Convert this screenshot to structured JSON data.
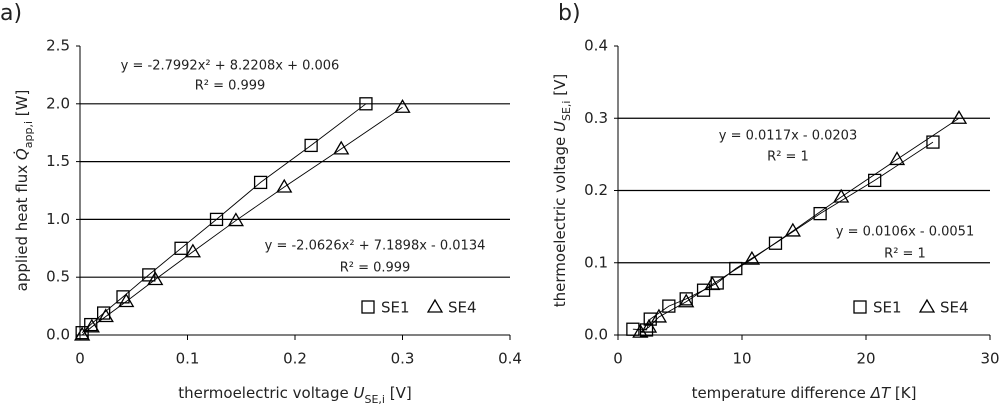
{
  "chart_data": [
    {
      "type": "scatter",
      "panel": "a)",
      "xlabel": {
        "text": "thermoelectric voltage ",
        "symbol": "U",
        "sub": "SE,i",
        "unit": " [V]"
      },
      "ylabel": {
        "text": "applied heat flux ",
        "symbol": "Q̇",
        "sub": "app,i",
        "unit": " [W]"
      },
      "xlim": [
        0,
        0.4
      ],
      "xticks": [
        0,
        0.1,
        0.2,
        0.3,
        0.4
      ],
      "ylim": [
        0,
        2.5
      ],
      "yticks": [
        {
          "value": 0,
          "label": "0.0"
        },
        {
          "value": 0.5,
          "label": "0.5"
        },
        {
          "value": 1,
          "label": "1.0"
        },
        {
          "value": 1.5,
          "label": "1.5"
        },
        {
          "value": 2,
          "label": "2.0"
        },
        {
          "value": 2.5,
          "label": "2.5"
        }
      ],
      "grid": true,
      "series": [
        {
          "name": "SE1",
          "marker": "square",
          "color": "#000000",
          "x": [
            0.002,
            0.01,
            0.022,
            0.04,
            0.064,
            0.094,
            0.127,
            0.168,
            0.215,
            0.266
          ],
          "values": [
            0.02,
            0.09,
            0.19,
            0.33,
            0.52,
            0.75,
            1.0,
            1.32,
            1.64,
            2.0
          ]
        },
        {
          "name": "SE4",
          "marker": "triangle",
          "color": "#000000",
          "x": [
            0.002,
            0.011,
            0.024,
            0.043,
            0.07,
            0.105,
            0.145,
            0.19,
            0.243,
            0.3
          ],
          "values": [
            0.0,
            0.07,
            0.16,
            0.29,
            0.48,
            0.72,
            0.99,
            1.28,
            1.61,
            1.97
          ]
        }
      ],
      "annotations": [
        "y = -2.7992x² + 8.2208x + 0.006",
        "R² = 0.999",
        "y = -2.0626x² + 7.1898x - 0.0134",
        "R² = 0.999"
      ]
    },
    {
      "type": "scatter",
      "panel": "b)",
      "xlabel": {
        "text": "temperature difference ",
        "symbol": "ΔT",
        "sub": "",
        "unit": " [K]"
      },
      "ylabel": {
        "text": "thermoelectric voltage ",
        "symbol": "U",
        "sub": "SE,i",
        "unit": " [V]"
      },
      "xlim": [
        0,
        30
      ],
      "xticks": [
        0,
        10,
        20,
        30
      ],
      "ylim": [
        0,
        0.4
      ],
      "yticks": [
        {
          "value": 0,
          "label": "0.0"
        },
        {
          "value": 0.1,
          "label": "0.1"
        },
        {
          "value": 0.2,
          "label": "0.2"
        },
        {
          "value": 0.3,
          "label": "0.3"
        },
        {
          "value": 0.4,
          "label": "0.4"
        }
      ],
      "grid": true,
      "series": [
        {
          "name": "SE1",
          "marker": "square",
          "color": "#000000",
          "x": [
            1.2,
            2.3,
            2.6,
            4.1,
            5.5,
            6.9,
            8.0,
            9.5,
            12.7,
            16.3,
            20.7,
            25.4
          ],
          "values": [
            0.008,
            0.007,
            0.022,
            0.04,
            0.05,
            0.062,
            0.072,
            0.092,
            0.127,
            0.168,
            0.214,
            0.267
          ]
        },
        {
          "name": "SE4",
          "marker": "triangle",
          "color": "#000000",
          "x": [
            1.8,
            2.5,
            3.3,
            5.5,
            7.6,
            10.8,
            14.1,
            18.0,
            22.5,
            27.5
          ],
          "values": [
            0.004,
            0.011,
            0.025,
            0.046,
            0.07,
            0.105,
            0.144,
            0.191,
            0.243,
            0.3
          ]
        }
      ],
      "annotations": [
        "y = 0.0117x - 0.0203",
        "R² = 1",
        "y = 0.0106x - 0.0051",
        "R² = 1"
      ]
    }
  ]
}
